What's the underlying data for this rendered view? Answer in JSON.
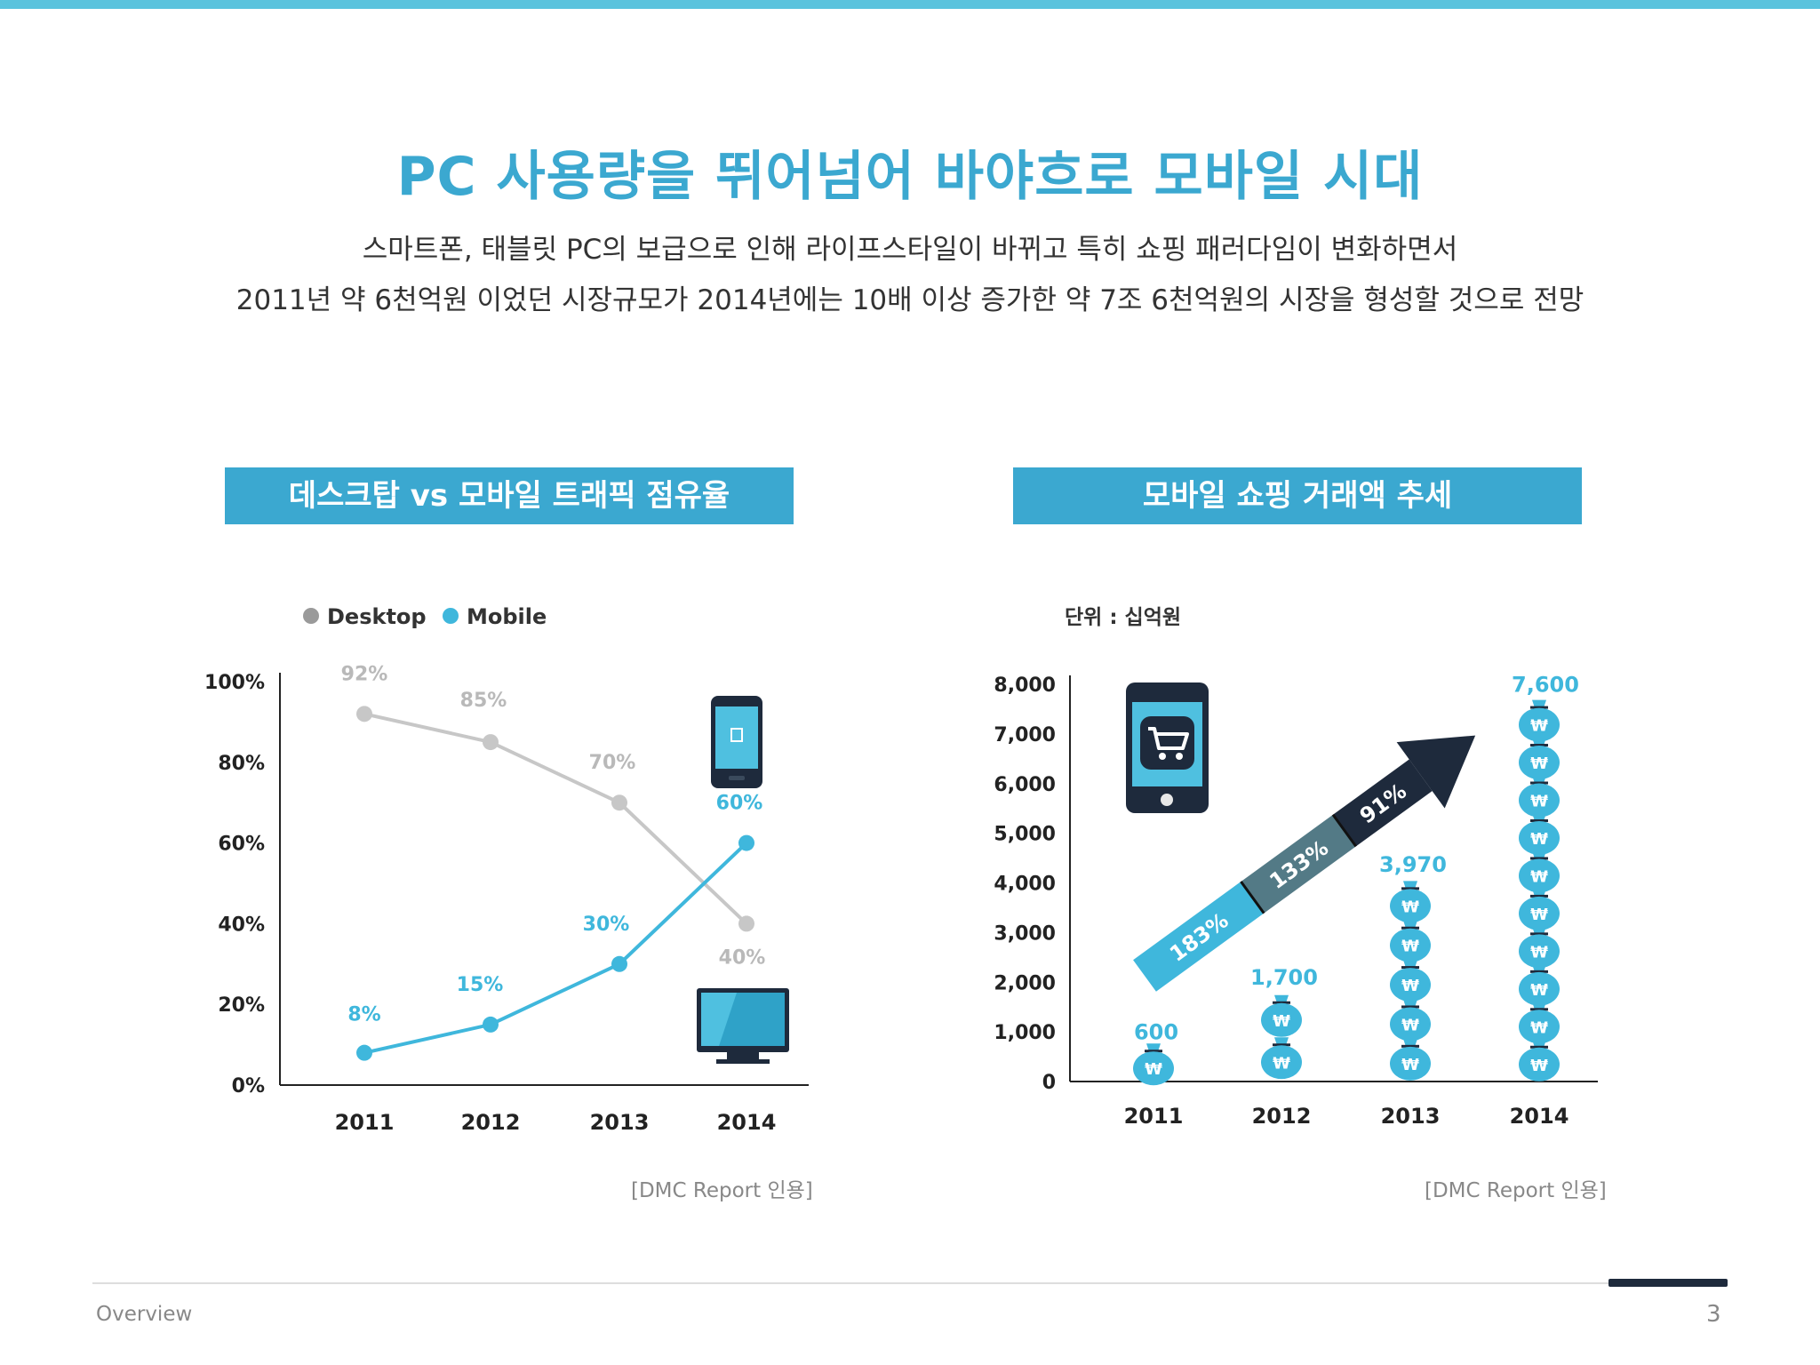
{
  "colors": {
    "accent": "#3ba8d0",
    "desktop": "#c7c7c7",
    "mobile": "#3fb7dc",
    "dark": "#1e2a3c"
  },
  "title": "PC 사용량을 뛰어넘어 바야흐로 모바일 시대",
  "subtitle_line1": "스마트폰, 태블릿 PC의 보급으로 인해 라이프스타일이 바뀌고 특히 쇼핑 패러다임이 변화하면서",
  "subtitle_line2": "2011년 약 6천억원 이었던 시장규모가 2014년에는 10배 이상 증가한 약 7조 6천억원의 시장을 형성할 것으로 전망",
  "footer": {
    "section": "Overview",
    "page": "3"
  },
  "chart_data": [
    {
      "type": "line",
      "header": "데스크탑 vs 모바일 트래픽 점유율",
      "x": [
        "2011",
        "2012",
        "2013",
        "2014"
      ],
      "series": [
        {
          "name": "Desktop",
          "values": [
            92,
            85,
            70,
            40
          ],
          "labels": [
            "92%",
            "85%",
            "70%",
            "40%"
          ]
        },
        {
          "name": "Mobile",
          "values": [
            8,
            15,
            30,
            60
          ],
          "labels": [
            "8%",
            "15%",
            "30%",
            "60%"
          ]
        }
      ],
      "y_ticks": [
        "0%",
        "20%",
        "40%",
        "60%",
        "80%",
        "100%"
      ],
      "ylim": [
        0,
        100
      ],
      "legend": "top-left",
      "grid": false,
      "source": "[DMC Report 인용]",
      "icons": [
        "smartphone-icon",
        "desktop-monitor-icon"
      ]
    },
    {
      "type": "bar",
      "header": "모바일 쇼핑 거래액 추세",
      "unit_label": "단위 : 십억원",
      "categories": [
        "2011",
        "2012",
        "2013",
        "2014"
      ],
      "values": [
        600,
        1700,
        3970,
        7600
      ],
      "value_labels": [
        "600",
        "1,700",
        "3,970",
        "7,600"
      ],
      "y_ticks": [
        "0",
        "1,000",
        "2,000",
        "3,000",
        "4,000",
        "5,000",
        "6,000",
        "7,000",
        "8,000"
      ],
      "ylim": [
        0,
        8000
      ],
      "growth_arrow": [
        "183%",
        "133%",
        "91%"
      ],
      "bar_symbol": "₩",
      "grid": false,
      "source": "[DMC Report 인용]",
      "icons": [
        "money-bag-icon",
        "smartphone-cart-icon",
        "growth-arrow-icon"
      ]
    }
  ]
}
